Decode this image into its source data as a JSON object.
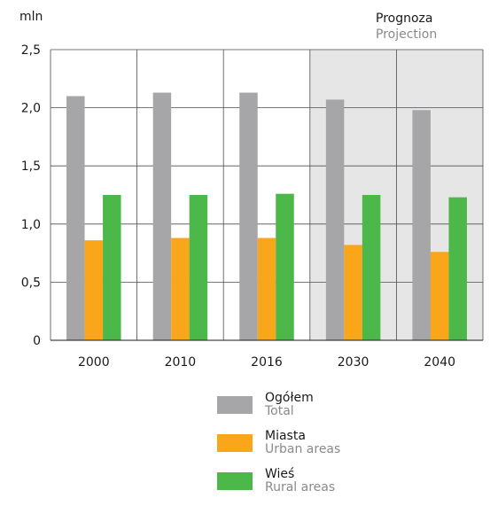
{
  "chart_data": {
    "type": "bar",
    "unit_label": "mln",
    "categories": [
      "2000",
      "2010",
      "2016",
      "2030",
      "2040"
    ],
    "projection": {
      "label_pl": "Prognoza",
      "label_en": "Projection",
      "categories": [
        "2030",
        "2040"
      ],
      "shade_color": "#e6e6e6"
    },
    "y_ticks": [
      "0",
      "0,5",
      "1,0",
      "1,5",
      "2,0",
      "2,5"
    ],
    "ylim": [
      0,
      2.5
    ],
    "grid": true,
    "legend_position": "bottom",
    "series": [
      {
        "name": "Ogółem",
        "name_en": "Total",
        "color": "#a6a6a8",
        "values": [
          2.1,
          2.13,
          2.13,
          2.07,
          1.98
        ]
      },
      {
        "name": "Miasta",
        "name_en": "Urban areas",
        "color": "#f9a61a",
        "values": [
          0.86,
          0.88,
          0.88,
          0.82,
          0.76
        ]
      },
      {
        "name": "Wieś",
        "name_en": "Rural areas",
        "color": "#4cb849",
        "values": [
          1.25,
          1.25,
          1.26,
          1.25,
          1.23
        ]
      }
    ]
  }
}
